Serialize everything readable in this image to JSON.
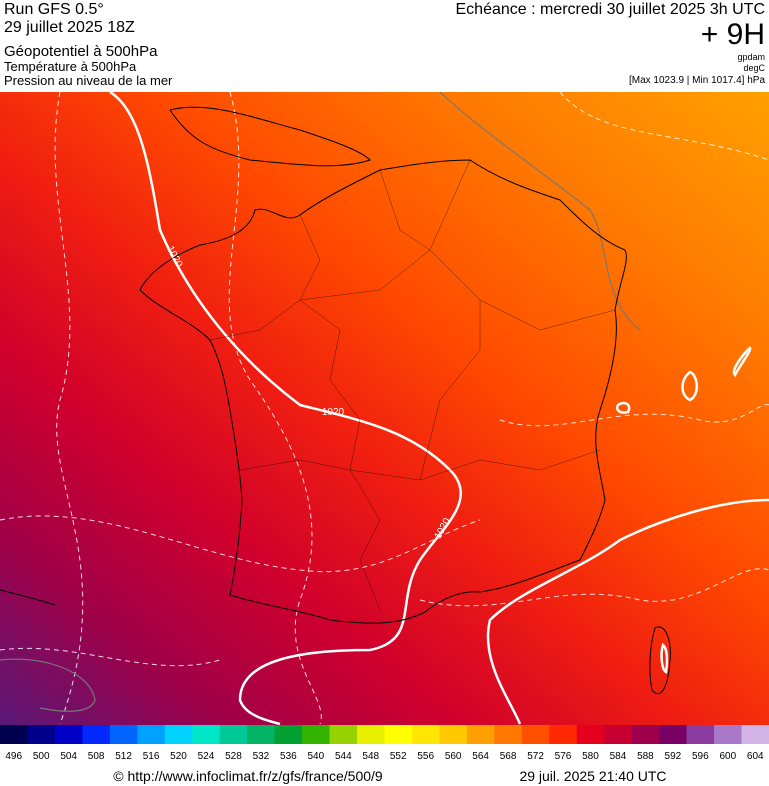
{
  "header": {
    "left": [
      "Run GFS 0.5°",
      "29 juillet 2025 18Z",
      "Géopotentiel à 500hPa",
      "Température à 500hPa",
      "Pression au niveau de la mer"
    ],
    "title": "Echéance : mercredi 30 juillet 2025 3h UTC",
    "lead": "+ 9H",
    "units": [
      "gpdam",
      "degC"
    ],
    "range": "[Max 1023.9 | Min 1017.4] hPa"
  },
  "map": {
    "isobar_labels": [
      "1020",
      "1020",
      "1020"
    ]
  },
  "legend": {
    "values": [
      496,
      500,
      504,
      508,
      512,
      516,
      520,
      524,
      528,
      532,
      536,
      540,
      544,
      548,
      552,
      556,
      560,
      564,
      568,
      572,
      576,
      580,
      584,
      588,
      592,
      596,
      600,
      604
    ],
    "colors": [
      "#000050",
      "#00008c",
      "#0000c8",
      "#0028ff",
      "#0064ff",
      "#00a0ff",
      "#00d2ff",
      "#00e6c8",
      "#00c896",
      "#00b464",
      "#00a032",
      "#32b400",
      "#96d200",
      "#e6f000",
      "#ffff00",
      "#ffe600",
      "#ffc800",
      "#ffa000",
      "#ff7800",
      "#ff5000",
      "#ff2800",
      "#e6001e",
      "#c80032",
      "#a0004b",
      "#780064",
      "#8c3ca0",
      "#aa78c8",
      "#d2b4e6"
    ]
  },
  "footer": {
    "url": "© http://www.infoclimat.fr/z/gfs/france/500/9",
    "timestamp": "29 juil. 2025 21:40 UTC"
  }
}
